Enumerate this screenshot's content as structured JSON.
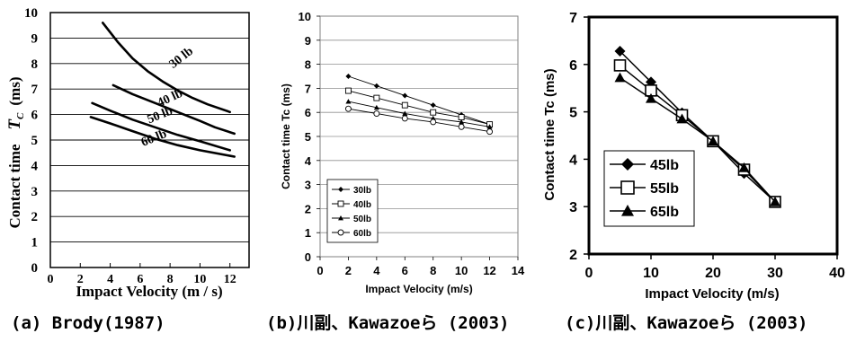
{
  "captions": {
    "a": "(a) Brody(1987)",
    "b": "(b)川副、Kawazoeら (2003)",
    "c": "(c)川副、Kawazoeら (2003)"
  },
  "chart_data": [
    {
      "type": "line",
      "xlabel": "Impact Velocity (m / s)",
      "ylabel_main": "Contact time",
      "ylabel_symbol": "T",
      "ylabel_subscript": "C",
      "ylabel_unit": "(ms)",
      "xlim": [
        0,
        14
      ],
      "ylim": [
        0,
        10
      ],
      "xticks": [
        "0",
        "2",
        "4",
        "6",
        "8",
        "10",
        "12"
      ],
      "yticks": [
        "0",
        "1",
        "2",
        "3",
        "4",
        "5",
        "6",
        "7",
        "8",
        "9",
        "10"
      ],
      "grid": "horizontal",
      "series": [
        {
          "name": "30 lb",
          "color": "#000000",
          "x": [
            3.5,
            4.5,
            5.5,
            6.5,
            7.5,
            8.5,
            9.5,
            10.5,
            12
          ],
          "y": [
            9.6,
            8.85,
            8.2,
            7.7,
            7.3,
            6.95,
            6.65,
            6.4,
            6.1
          ]
        },
        {
          "name": "40 lb",
          "color": "#000000",
          "x": [
            4.2,
            5.5,
            7,
            8.5,
            10,
            11,
            12.3
          ],
          "y": [
            7.15,
            6.8,
            6.45,
            6.1,
            5.75,
            5.5,
            5.25
          ]
        },
        {
          "name": "50 lb",
          "color": "#000000",
          "x": [
            2.8,
            4,
            5.5,
            7,
            8.5,
            10,
            12
          ],
          "y": [
            6.45,
            6.15,
            5.8,
            5.5,
            5.2,
            4.95,
            4.6
          ]
        },
        {
          "name": "60 lb",
          "color": "#000000",
          "x": [
            2.7,
            4,
            5.5,
            7,
            8.5,
            10,
            12.3
          ],
          "y": [
            5.9,
            5.65,
            5.35,
            5.05,
            4.8,
            4.6,
            4.35
          ]
        }
      ]
    },
    {
      "type": "line",
      "xlabel": "Impact Velocity (m/s)",
      "ylabel": "Contact time Tc (ms)",
      "xlim": [
        0,
        14
      ],
      "ylim": [
        0,
        10
      ],
      "xticks": [
        "0",
        "2",
        "4",
        "6",
        "8",
        "10",
        "12",
        "14"
      ],
      "yticks": [
        "0",
        "1",
        "2",
        "3",
        "4",
        "5",
        "6",
        "7",
        "8",
        "9",
        "10"
      ],
      "grid": "horizontal",
      "legend": "bottom-left",
      "x": [
        2,
        4,
        6,
        8,
        10,
        12
      ],
      "series": [
        {
          "name": "30lb",
          "marker": "diamond",
          "values": [
            7.5,
            7.1,
            6.7,
            6.3,
            5.9,
            5.5
          ]
        },
        {
          "name": "40lb",
          "marker": "square",
          "values": [
            6.9,
            6.6,
            6.3,
            6.0,
            5.8,
            5.5
          ]
        },
        {
          "name": "50lb",
          "marker": "triangle",
          "values": [
            6.45,
            6.2,
            5.95,
            5.75,
            5.6,
            5.4
          ]
        },
        {
          "name": "60lb",
          "marker": "circle",
          "values": [
            6.15,
            5.95,
            5.75,
            5.6,
            5.4,
            5.2
          ]
        }
      ]
    },
    {
      "type": "line",
      "xlabel": "Impact Velocity (m/s)",
      "ylabel": "Contact time Tc (ms)",
      "xlim": [
        0,
        40
      ],
      "ylim": [
        2,
        7
      ],
      "xticks": [
        "0",
        "10",
        "20",
        "30",
        "40"
      ],
      "yticks": [
        "2",
        "3",
        "4",
        "5",
        "6",
        "7"
      ],
      "grid": "none",
      "legend": "left",
      "x": [
        5,
        10,
        15,
        20,
        25,
        30
      ],
      "series": [
        {
          "name": "45lb",
          "marker": "diamond",
          "values": [
            6.28,
            5.63,
            4.98,
            4.38,
            3.7,
            3.1
          ]
        },
        {
          "name": "55lb",
          "marker": "square",
          "values": [
            5.98,
            5.45,
            4.93,
            4.38,
            3.78,
            3.1
          ]
        },
        {
          "name": "65lb",
          "marker": "triangle",
          "values": [
            5.72,
            5.28,
            4.85,
            4.38,
            3.82,
            3.1
          ]
        }
      ]
    }
  ]
}
